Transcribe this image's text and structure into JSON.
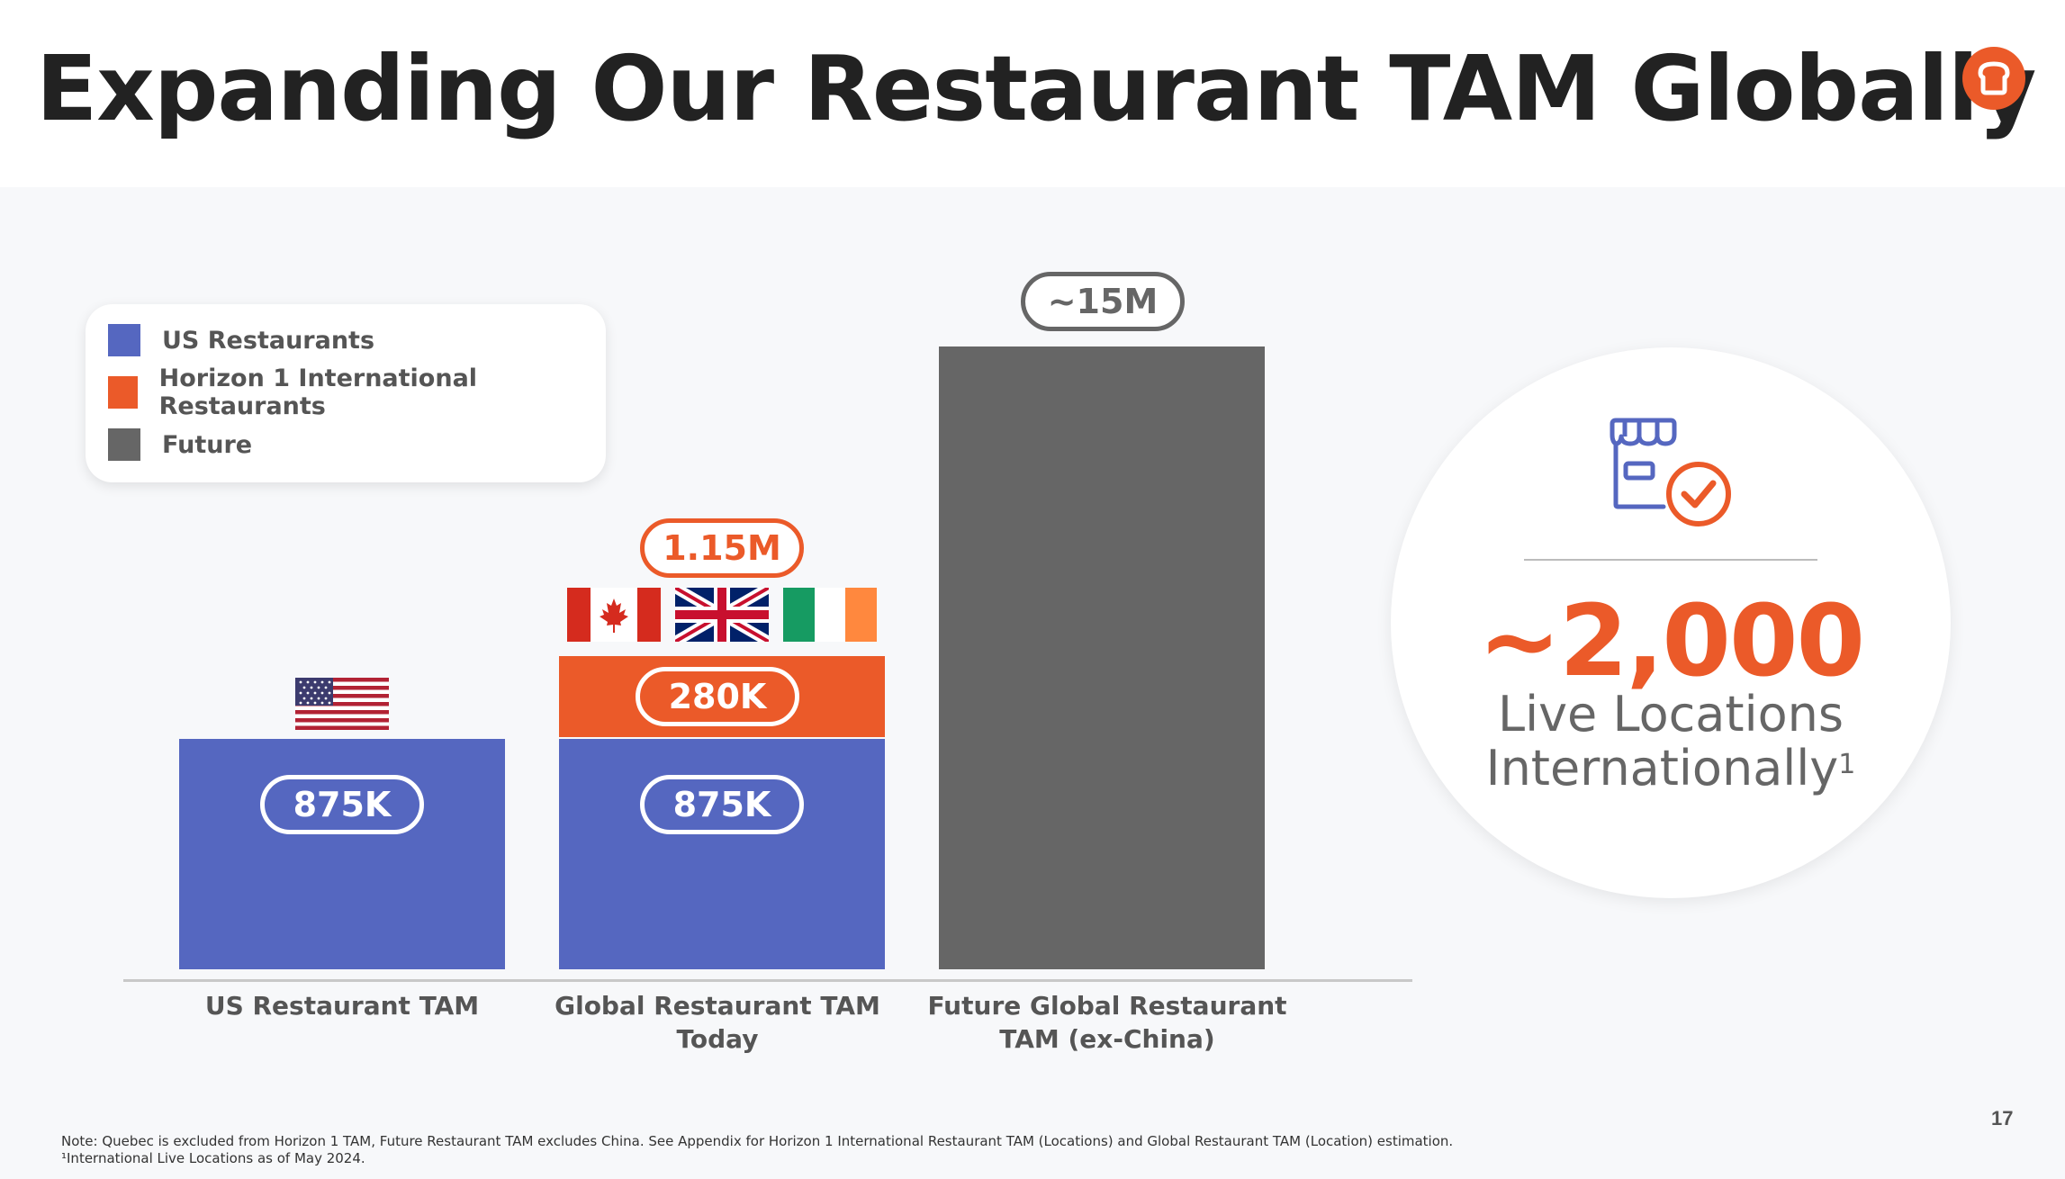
{
  "slide": {
    "title": "Expanding Our Restaurant TAM Globally",
    "page_number": "17"
  },
  "colors": {
    "us": "#5567c0",
    "horizon1": "#eb5a29",
    "future": "#666666",
    "accent": "#eb5a29"
  },
  "legend": {
    "items": [
      {
        "label": "US Restaurants",
        "color": "#5567c0"
      },
      {
        "label": "Horizon 1 International Restaurants",
        "color": "#eb5a29"
      },
      {
        "label": "Future",
        "color": "#666666"
      }
    ]
  },
  "chart_data": {
    "type": "bar",
    "categories": [
      "US Restaurant TAM",
      "Global Restaurant TAM Today",
      "Future Global Restaurant TAM (ex-China)"
    ],
    "series": [
      {
        "name": "US Restaurants",
        "values": [
          875,
          875,
          0
        ]
      },
      {
        "name": "Horizon 1 International Restaurants",
        "values": [
          0,
          280,
          0
        ]
      },
      {
        "name": "Future",
        "values": [
          0,
          0,
          15000
        ]
      }
    ],
    "labels": {
      "us_only": "875K",
      "global_us": "875K",
      "global_intl": "280K",
      "global_total": "1.15M",
      "future_total": "~15M"
    },
    "legend_placement": "top-left"
  },
  "xlabels": {
    "bar1": "US Restaurant TAM",
    "bar2_line1": "Global Restaurant TAM",
    "bar2_line2": "Today",
    "bar3_line1": "Future Global Restaurant",
    "bar3_line2": "TAM (ex-China)"
  },
  "flags": [
    "us-flag",
    "canada-flag",
    "uk-flag",
    "ireland-flag"
  ],
  "callout": {
    "icon": "storefront-check-icon",
    "value": "~2,000",
    "line1": "Live Locations",
    "line2": "Internationally",
    "footnote_mark": "1"
  },
  "notes": {
    "line1": "Note: Quebec is excluded from Horizon 1 TAM, Future Restaurant TAM excludes China. See Appendix for Horizon 1 International Restaurant TAM (Locations) and Global Restaurant TAM (Location) estimation.",
    "line2": "¹International Live Locations as of May 2024."
  }
}
